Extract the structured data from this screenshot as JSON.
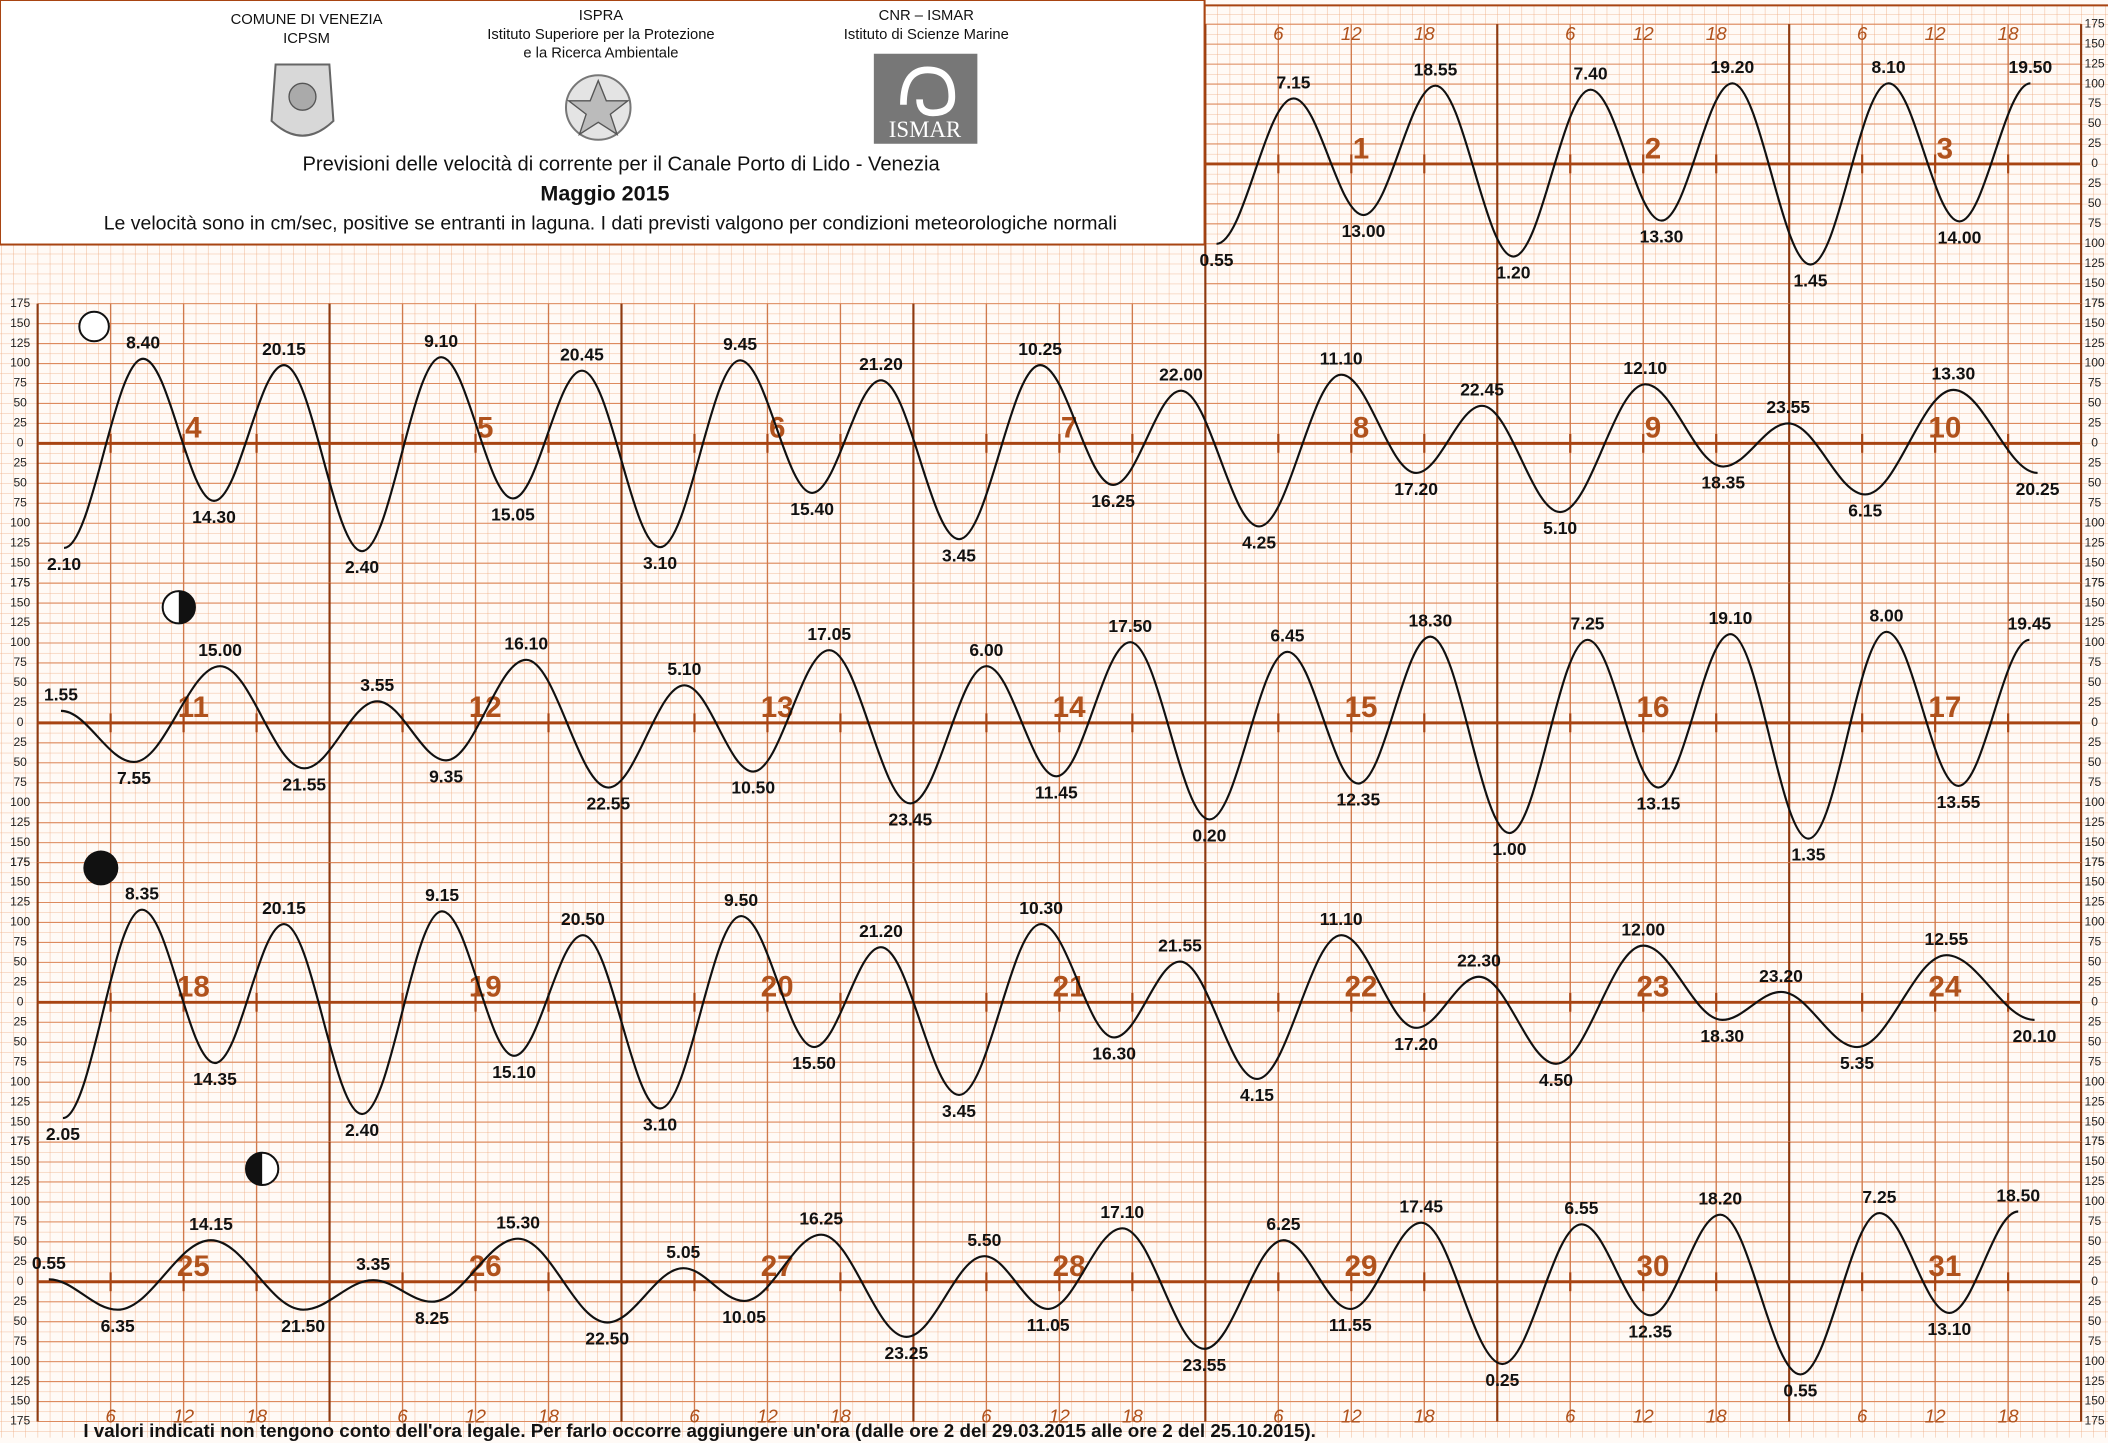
{
  "header": {
    "org1": "COMUNE DI VENEZIA",
    "org1_sub": "ICPSM",
    "org2": "ISPRA",
    "org2_line1": "Istituto Superiore per la Protezione",
    "org2_line2": "e la Ricerca Ambientale",
    "org3": "CNR – ISMAR",
    "org3_sub": "Istituto di Scienze Marine",
    "logo_text": "ISMAR",
    "title": "Previsioni delle velocità di corrente per il Canale Porto di Lido - Venezia",
    "subtitle": "Maggio 2015",
    "note": "Le velocità sono in cm/sec, positive se entranti in laguna. I dati previsti valgono per condizioni meteorologiche normali"
  },
  "footer": "I valori indicati non tengono conto dell'ora legale. Per farlo occorre aggiungere un'ora (dalle ore 2 del 29.03.2015 alle ore 2 del 25.10.2015).",
  "hour_labels": [
    6,
    12,
    18
  ],
  "chart_data": [
    {
      "type": "line",
      "color": "#111111",
      "grid": true,
      "days": [
        1,
        2,
        3
      ],
      "xlim": [
        0,
        72
      ],
      "ylim": [
        -175,
        175
      ],
      "yticks": [
        175,
        150,
        125,
        100,
        75,
        50,
        25,
        0,
        {
          "value": -25,
          "label": "25"
        },
        {
          "value": -50,
          "label": "50"
        },
        {
          "value": -75,
          "label": "75"
        },
        {
          "value": -100,
          "label": "100"
        },
        {
          "value": -125,
          "label": "125"
        },
        {
          "value": -150,
          "label": "150"
        },
        {
          "value": -175,
          "label": "175"
        }
      ],
      "x": [
        0.92,
        7.25,
        13,
        18.92,
        25.33,
        31.67,
        37.5,
        43.33,
        49.75,
        56.17,
        62,
        67.83
      ],
      "values": [
        -100,
        82,
        -64,
        98,
        -116,
        93,
        -71,
        101,
        -126,
        101,
        -72,
        101
      ],
      "labels": [
        "0.55",
        "7.15",
        "13.00",
        "18.55",
        "1.20",
        "7.40",
        "13.30",
        "19.20",
        "1.45",
        "8.10",
        "14.00",
        "19.50"
      ]
    },
    {
      "type": "line",
      "color": "#111111",
      "grid": true,
      "days": [
        4,
        5,
        6,
        7,
        8,
        9,
        10
      ],
      "xlim": [
        72,
        240
      ],
      "ylim": [
        -175,
        175
      ],
      "yticks": [
        175,
        150,
        125,
        100,
        75,
        50,
        25,
        0,
        {
          "value": -25,
          "label": "25"
        },
        {
          "value": -50,
          "label": "50"
        },
        {
          "value": -75,
          "label": "75"
        },
        {
          "value": -100,
          "label": "100"
        },
        {
          "value": -125,
          "label": "125"
        },
        {
          "value": -150,
          "label": "150"
        },
        {
          "value": -175,
          "label": "175"
        }
      ],
      "x": [
        74.17,
        80.67,
        86.5,
        92.25,
        98.67,
        105.17,
        111.08,
        116.75,
        123.17,
        129.75,
        135.67,
        141.33,
        147.75,
        154.42,
        160.42,
        166,
        172.42,
        179.17,
        185.33,
        190.75,
        197.17,
        204.17,
        210.58,
        215.92,
        222.25,
        229.5,
        236.42
      ],
      "values": [
        -131,
        106,
        -72,
        98,
        -135,
        108,
        -69,
        91,
        -130,
        104,
        -62,
        79,
        -120,
        98,
        -52,
        66,
        -104,
        86,
        -37,
        47,
        -86,
        74,
        -29,
        25,
        -64,
        67,
        -37
      ],
      "labels": [
        "2.10",
        "8.40",
        "14.30",
        "20.15",
        "2.40",
        "9.10",
        "15.05",
        "20.45",
        "3.10",
        "9.45",
        "15.40",
        "21.20",
        "3.45",
        "10.25",
        "16.25",
        "22.00",
        "4.25",
        "11.10",
        "17.20",
        "22.45",
        "5.10",
        "12.10",
        "18.35",
        "23.55",
        "6.15",
        "13.30",
        "20.25"
      ]
    },
    {
      "type": "line",
      "color": "#111111",
      "grid": true,
      "days": [
        11,
        12,
        13,
        14,
        15,
        16,
        17
      ],
      "xlim": [
        240,
        408
      ],
      "ylim": [
        -175,
        175
      ],
      "yticks": [
        175,
        150,
        125,
        100,
        75,
        50,
        25,
        0,
        {
          "value": -25,
          "label": "25"
        },
        {
          "value": -50,
          "label": "50"
        },
        {
          "value": -75,
          "label": "75"
        },
        {
          "value": -100,
          "label": "100"
        },
        {
          "value": -125,
          "label": "125"
        },
        {
          "value": -150,
          "label": "150"
        },
        {
          "value": -175,
          "label": "175"
        }
      ],
      "x": [
        241.92,
        247.92,
        255,
        261.92,
        267.92,
        273.58,
        280.17,
        286.92,
        293.17,
        298.83,
        305.08,
        311.75,
        318,
        323.75,
        329.83,
        336.33,
        342.75,
        348.58,
        354.5,
        361,
        367.42,
        373.25,
        379.17,
        385.58,
        392,
        397.92,
        403.75
      ],
      "values": [
        15,
        -49,
        71,
        -57,
        27,
        -47,
        79,
        -81,
        47,
        -61,
        91,
        -101,
        71,
        -67,
        101,
        -121,
        89,
        -76,
        108,
        -138,
        104,
        -81,
        111,
        -145,
        114,
        -79,
        104
      ],
      "labels": [
        "1.55",
        "7.55",
        "15.00",
        "21.55",
        "3.55",
        "9.35",
        "16.10",
        "22.55",
        "5.10",
        "10.50",
        "17.05",
        "23.45",
        "6.00",
        "11.45",
        "17.50",
        "0.20",
        "6.45",
        "12.35",
        "18.30",
        "1.00",
        "7.25",
        "13.15",
        "19.10",
        "1.35",
        "8.00",
        "13.55",
        "19.45"
      ]
    },
    {
      "type": "line",
      "color": "#111111",
      "grid": true,
      "days": [
        18,
        19,
        20,
        21,
        22,
        23,
        24
      ],
      "xlim": [
        408,
        576
      ],
      "ylim": [
        -175,
        175
      ],
      "yticks": [
        175,
        150,
        125,
        100,
        75,
        50,
        25,
        0,
        {
          "value": -25,
          "label": "25"
        },
        {
          "value": -50,
          "label": "50"
        },
        {
          "value": -75,
          "label": "75"
        },
        {
          "value": -100,
          "label": "100"
        },
        {
          "value": -125,
          "label": "125"
        },
        {
          "value": -150,
          "label": "150"
        },
        {
          "value": -175,
          "label": "175"
        }
      ],
      "x": [
        410.08,
        416.58,
        422.58,
        428.25,
        434.67,
        441.25,
        447.17,
        452.83,
        459.17,
        465.83,
        471.83,
        477.33,
        483.75,
        490.5,
        496.5,
        501.92,
        508.25,
        515.17,
        521.33,
        526.5,
        532.83,
        540,
        546.5,
        551.33,
        557.58,
        564.92,
        572.17
      ],
      "values": [
        -145,
        116,
        -76,
        98,
        -140,
        114,
        -67,
        84,
        -133,
        108,
        -56,
        69,
        -116,
        98,
        -44,
        51,
        -96,
        84,
        -32,
        32,
        -77,
        71,
        -22,
        13,
        -56,
        59,
        -22
      ],
      "labels": [
        "2.05",
        "8.35",
        "14.35",
        "20.15",
        "2.40",
        "9.15",
        "15.10",
        "20.50",
        "3.10",
        "9.50",
        "15.50",
        "21.20",
        "3.45",
        "10.30",
        "16.30",
        "21.55",
        "4.15",
        "11.10",
        "17.20",
        "22.30",
        "4.50",
        "12.00",
        "18.30",
        "23.20",
        "5.35",
        "12.55",
        "20.10"
      ]
    },
    {
      "type": "line",
      "color": "#111111",
      "grid": true,
      "days": [
        25,
        26,
        27,
        28,
        29,
        30,
        31
      ],
      "xlim": [
        576,
        744
      ],
      "ylim": [
        -175,
        175
      ],
      "yticks": [
        175,
        150,
        125,
        100,
        75,
        50,
        25,
        0,
        {
          "value": -25,
          "label": "25"
        },
        {
          "value": -50,
          "label": "50"
        },
        {
          "value": -75,
          "label": "75"
        },
        {
          "value": -100,
          "label": "100"
        },
        {
          "value": -125,
          "label": "125"
        },
        {
          "value": -150,
          "label": "150"
        },
        {
          "value": -175,
          "label": "175"
        }
      ],
      "x": [
        576.92,
        582.58,
        590.25,
        597.83,
        603.58,
        608.42,
        615.5,
        622.83,
        629.08,
        634.08,
        640.42,
        647.42,
        653.83,
        659.08,
        665.17,
        671.92,
        678.42,
        683.92,
        689.75,
        696.42,
        702.92,
        708.58,
        714.33,
        720.92,
        727.42,
        733.17,
        738.83
      ],
      "values": [
        3,
        -35,
        52,
        -35,
        2,
        -25,
        54,
        -51,
        17,
        -24,
        59,
        -69,
        32,
        -34,
        67,
        -84,
        52,
        -34,
        74,
        -103,
        72,
        -42,
        84,
        -116,
        86,
        -39,
        88
      ],
      "labels": [
        "0.55",
        "6.35",
        "14.15",
        "21.50",
        "3.35",
        "8.25",
        "15.30",
        "22.50",
        "5.05",
        "10.05",
        "16.25",
        "23.25",
        "5.50",
        "11.05",
        "17.10",
        "23.55",
        "6.25",
        "11.55",
        "17.45",
        "0.25",
        "6.55",
        "12.35",
        "18.20",
        "0.55",
        "7.25",
        "13.10",
        "18.50"
      ]
    }
  ]
}
